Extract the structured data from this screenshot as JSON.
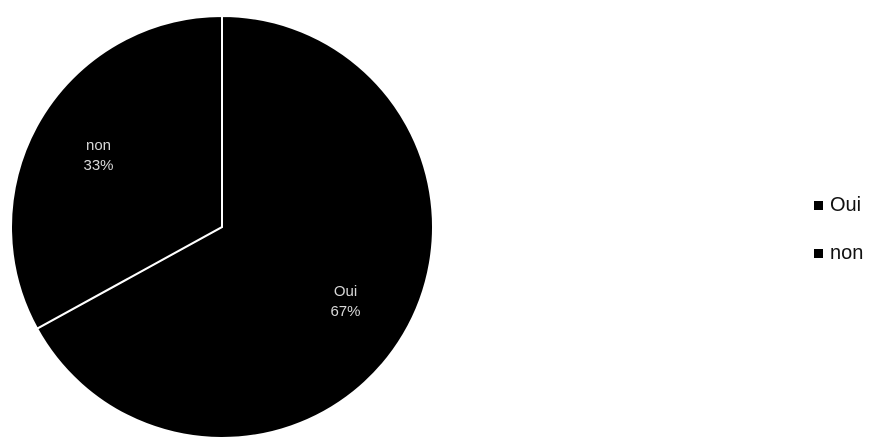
{
  "chart_data": {
    "type": "pie",
    "title": "",
    "slices": [
      {
        "label": "Oui",
        "value": 67,
        "value_label": "67%",
        "color": "#000000"
      },
      {
        "label": "non",
        "value": 33,
        "value_label": "33%",
        "color": "#000000"
      }
    ],
    "start_angle_deg": 0,
    "direction": "clockwise",
    "slice_border_color": "#ffffff",
    "legend_position": "right"
  }
}
